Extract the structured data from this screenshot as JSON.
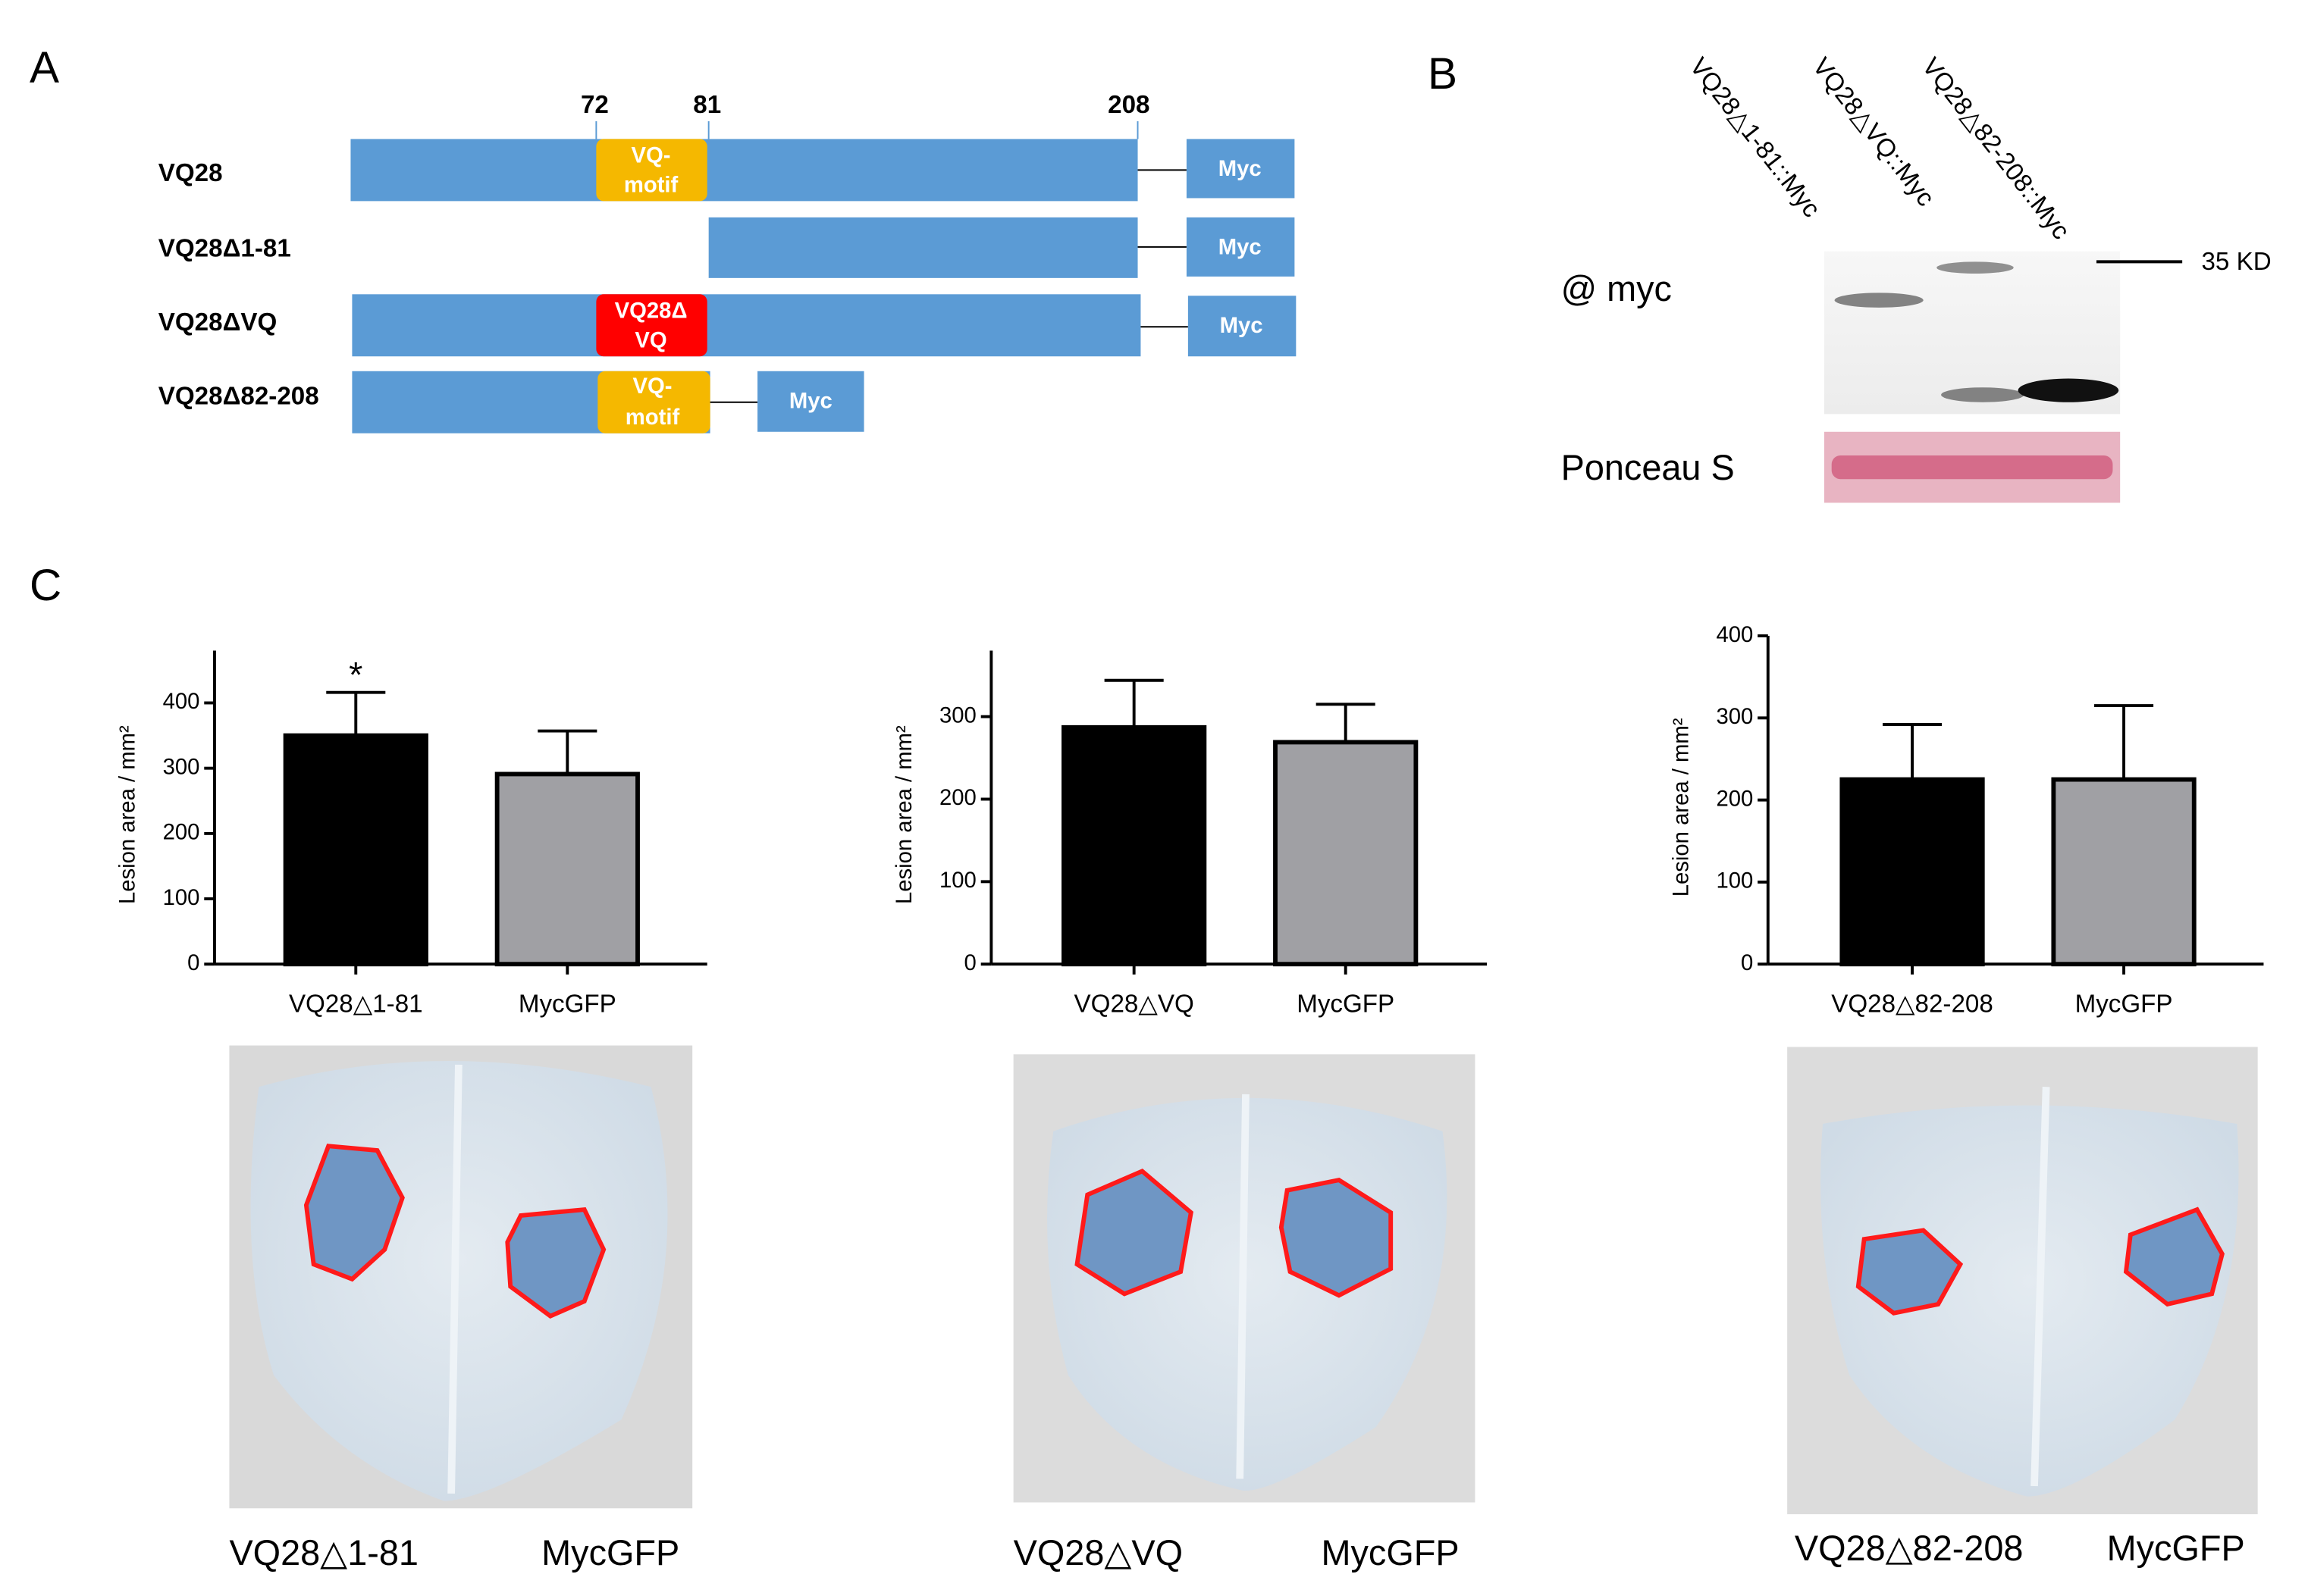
{
  "panel_labels": [
    "A",
    "B",
    "C"
  ],
  "panel_a": {
    "positions": [
      "72",
      "81",
      "208"
    ],
    "rows": [
      "VQ28",
      "VQ28Δ1-81",
      "VQ28ΔVQ",
      "VQ28Δ82-208"
    ],
    "vq_motif": [
      "VQ-",
      "motif"
    ],
    "vq_deleted": [
      "VQ28Δ",
      "VQ"
    ],
    "tag": "Myc"
  },
  "panel_b": {
    "lanes": [
      "VQ28△1-81::Myc",
      "VQ28△VQ::Myc",
      "VQ28△82-208::Myc"
    ],
    "antibody": "@ myc",
    "loading": "Ponceau S",
    "marker": "35 KD"
  },
  "chart_data": [
    {
      "type": "bar",
      "ylabel": "Lesion area / mm²",
      "annotation": "*",
      "categories": [
        "VQ28△1-81",
        "MycGFP"
      ],
      "values": [
        350,
        291
      ],
      "errors": [
        66,
        66
      ],
      "colors": [
        "#000000",
        "#a0a0a4"
      ],
      "ylim": [
        0,
        480
      ],
      "yticks": [
        0,
        100,
        200,
        300,
        400
      ]
    },
    {
      "type": "bar",
      "ylabel": "Lesion area / mm²",
      "categories": [
        "VQ28△VQ",
        "MycGFP"
      ],
      "values": [
        287,
        269
      ],
      "errors": [
        57,
        46
      ],
      "colors": [
        "#000000",
        "#a0a0a4"
      ],
      "ylim": [
        0,
        380
      ],
      "yticks": [
        0,
        100,
        200,
        300
      ]
    },
    {
      "type": "bar",
      "ylabel": "Lesion area / mm²",
      "categories": [
        "VQ28△82-208",
        "MycGFP"
      ],
      "values": [
        225,
        225
      ],
      "errors": [
        67,
        90
      ],
      "colors": [
        "#000000",
        "#a0a0a4"
      ],
      "ylim": [
        0,
        400
      ],
      "yticks": [
        0,
        100,
        200,
        300,
        400
      ]
    }
  ],
  "photo_captions": [
    [
      "VQ28△1-81",
      "MycGFP"
    ],
    [
      "VQ28△VQ",
      "MycGFP"
    ],
    [
      "VQ28△82-208",
      "MycGFP"
    ]
  ]
}
